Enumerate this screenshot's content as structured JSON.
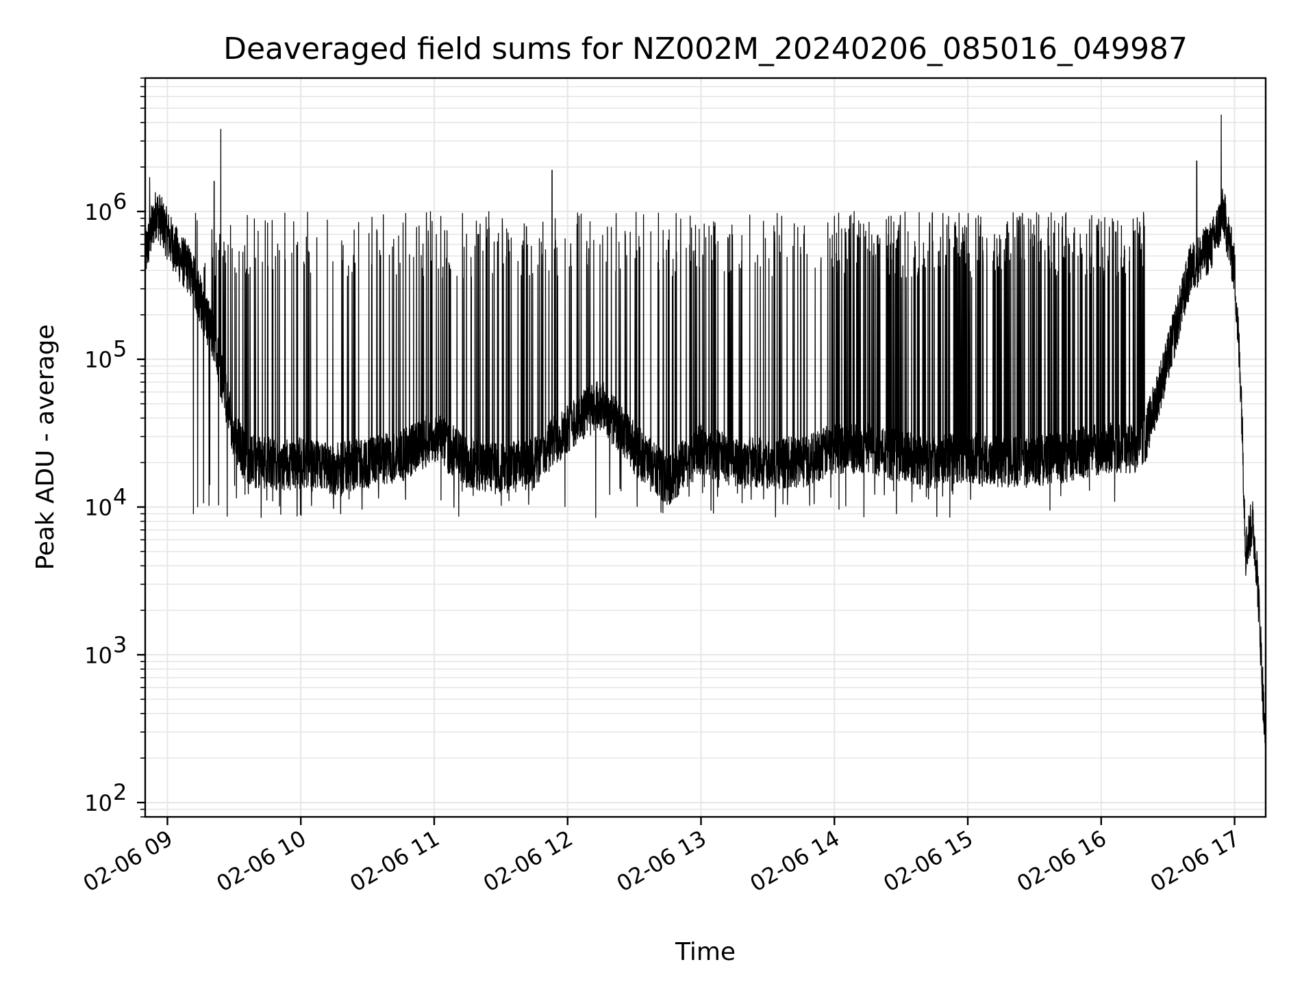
{
  "chart_data": {
    "type": "line",
    "title": "Deaveraged field sums for NZ002M_20240206_085016_049987",
    "xlabel": "Time",
    "ylabel": "Peak ADU - average",
    "yscale": "log",
    "ylim": [
      80,
      8000000
    ],
    "xlim": [
      "2024-02-06 08:50",
      "2024-02-06 17:14"
    ],
    "x_tick_labels": [
      "02-06 09",
      "02-06 10",
      "02-06 11",
      "02-06 12",
      "02-06 13",
      "02-06 14",
      "02-06 15",
      "02-06 16",
      "02-06 17"
    ],
    "y_ticks": [
      {
        "value": 100,
        "base": "10",
        "exp": "2"
      },
      {
        "value": 1000,
        "base": "10",
        "exp": "3"
      },
      {
        "value": 10000,
        "base": "10",
        "exp": "4"
      },
      {
        "value": 100000,
        "base": "10",
        "exp": "5"
      },
      {
        "value": 1000000,
        "base": "10",
        "exp": "6"
      }
    ],
    "grid": true,
    "line_color": "#000000",
    "grid_color": "#e6e6e6",
    "series": [
      {
        "x": [
          "2024-02-06 08:50",
          "2024-02-06 08:55",
          "2024-02-06 09:00",
          "2024-02-06 09:05",
          "2024-02-06 09:10",
          "2024-02-06 09:15",
          "2024-02-06 09:20",
          "2024-02-06 09:25",
          "2024-02-06 09:30",
          "2024-02-06 09:35",
          "2024-02-06 09:40",
          "2024-02-06 09:45",
          "2024-02-06 09:50",
          "2024-02-06 10:00",
          "2024-02-06 10:15",
          "2024-02-06 10:30",
          "2024-02-06 10:45",
          "2024-02-06 11:00",
          "2024-02-06 11:15",
          "2024-02-06 11:30",
          "2024-02-06 11:45",
          "2024-02-06 12:00",
          "2024-02-06 12:15",
          "2024-02-06 12:30",
          "2024-02-06 12:45",
          "2024-02-06 13:00",
          "2024-02-06 13:15",
          "2024-02-06 13:30",
          "2024-02-06 13:45",
          "2024-02-06 14:00",
          "2024-02-06 14:15",
          "2024-02-06 14:30",
          "2024-02-06 14:45",
          "2024-02-06 15:00",
          "2024-02-06 15:15",
          "2024-02-06 15:30",
          "2024-02-06 15:45",
          "2024-02-06 16:00",
          "2024-02-06 16:15",
          "2024-02-06 16:20",
          "2024-02-06 16:30",
          "2024-02-06 16:40",
          "2024-02-06 16:50",
          "2024-02-06 16:55",
          "2024-02-06 17:00",
          "2024-02-06 17:03",
          "2024-02-06 17:05",
          "2024-02-06 17:08",
          "2024-02-06 17:10",
          "2024-02-06 17:12",
          "2024-02-06 17:14"
        ],
        "y": [
          500000,
          1000000,
          700000,
          500000,
          400000,
          250000,
          150000,
          70000,
          30000,
          22000,
          20000,
          20000,
          19000,
          20000,
          18000,
          20000,
          22000,
          30000,
          20000,
          18000,
          20000,
          35000,
          50000,
          25000,
          15000,
          25000,
          20000,
          20000,
          20000,
          25000,
          25000,
          22000,
          20000,
          22000,
          20000,
          20000,
          22000,
          25000,
          25000,
          30000,
          100000,
          400000,
          600000,
          1000000,
          400000,
          60000,
          5000,
          8000,
          4000,
          1000,
          200
        ]
      }
    ],
    "spike_range": {
      "x_from": "2024-02-06 09:10",
      "x_to": "2024-02-06 16:20",
      "low": 12000,
      "high": 1000000
    },
    "notable_peaks": [
      {
        "x": "2024-02-06 08:52",
        "y": 1700000
      },
      {
        "x": "2024-02-06 09:21",
        "y": 1600000
      },
      {
        "x": "2024-02-06 09:24",
        "y": 3600000
      },
      {
        "x": "2024-02-06 11:53",
        "y": 1900000
      },
      {
        "x": "2024-02-06 16:43",
        "y": 2200000
      },
      {
        "x": "2024-02-06 16:54",
        "y": 4500000
      }
    ]
  }
}
